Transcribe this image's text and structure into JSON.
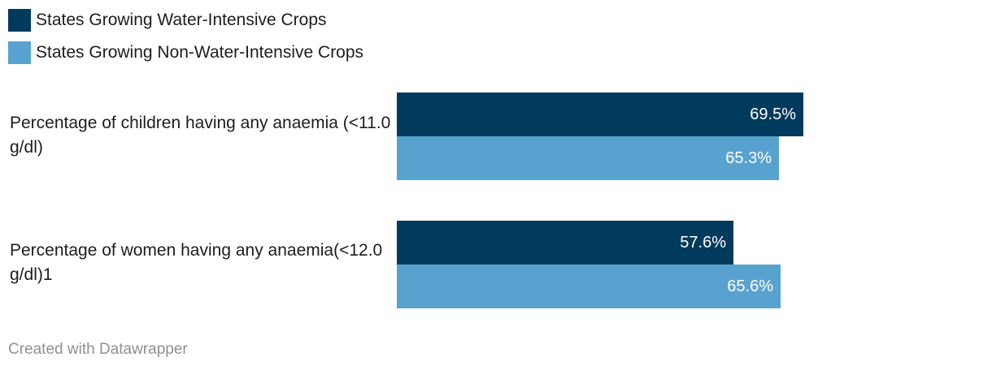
{
  "chart_data": {
    "type": "bar",
    "orientation": "horizontal",
    "title": "",
    "categories": [
      "Percentage of children having any anaemia (<11.0 g/dl)",
      "Percentage of women having any anaemia(<12.0 g/dl)1"
    ],
    "series": [
      {
        "name": "States Growing Water-Intensive Crops",
        "color": "#003a5d",
        "values": [
          69.5,
          57.6
        ],
        "labels": [
          "69.5%",
          "57.6%"
        ]
      },
      {
        "name": "States Growing Non-Water-Intensive Crops",
        "color": "#58a2d0",
        "values": [
          65.3,
          65.6
        ],
        "labels": [
          "65.3%",
          "65.6%"
        ]
      }
    ],
    "xlim": [
      0,
      100
    ],
    "grid": false,
    "legend_position": "top-left"
  },
  "footer": {
    "credit": "Created with Datawrapper"
  }
}
